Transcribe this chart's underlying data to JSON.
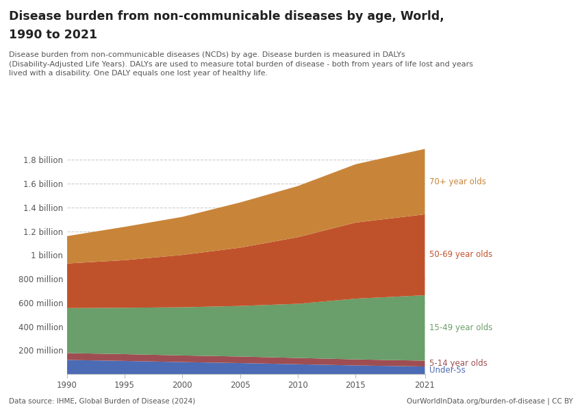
{
  "title_line1": "Disease burden from non-communicable diseases by age, World,",
  "title_line2": "1990 to 2021",
  "subtitle": "Disease burden from non-communicable diseases (NCDs) by age. Disease burden is measured in DALYs\n(Disability-Adjusted Life Years). DALYs are used to measure total burden of disease - both from years of life lost and years\nlived with a disability. One DALY equals one lost year of healthy life.",
  "source": "Data source: IHME, Global Burden of Disease (2024)",
  "source_right": "OurWorldInData.org/burden-of-disease | CC BY",
  "years": [
    1990,
    1995,
    2000,
    2005,
    2010,
    2015,
    2021
  ],
  "series": {
    "Under-5s": {
      "color": "#4c6bb5",
      "label_color": "#4c6bb5",
      "values": [
        118000000,
        110000000,
        100000000,
        92000000,
        82000000,
        72000000,
        63000000
      ]
    },
    "5-14 year olds": {
      "color": "#9e4e52",
      "label_color": "#9e4e52",
      "values": [
        58000000,
        57000000,
        56000000,
        55000000,
        53000000,
        51000000,
        49000000
      ]
    },
    "15-49 year olds": {
      "color": "#6a9e6a",
      "label_color": "#6a9e6a",
      "values": [
        378000000,
        390000000,
        405000000,
        425000000,
        455000000,
        510000000,
        550000000
      ]
    },
    "50-69 year olds": {
      "color": "#c0522b",
      "label_color": "#c0522b",
      "values": [
        375000000,
        400000000,
        440000000,
        490000000,
        560000000,
        640000000,
        680000000
      ]
    },
    "70+ year olds": {
      "color": "#c8853a",
      "label_color": "#c8853a",
      "values": [
        230000000,
        280000000,
        320000000,
        380000000,
        430000000,
        490000000,
        550000000
      ]
    }
  },
  "ylim": [
    0,
    1900000000
  ],
  "yticks": [
    200000000,
    400000000,
    600000000,
    800000000,
    1000000000,
    1200000000,
    1400000000,
    1600000000,
    1800000000
  ],
  "ytick_labels": [
    "200 million",
    "400 million",
    "600 million",
    "800 million",
    "1 billion",
    "1.2 billion",
    "1.4 billion",
    "1.6 billion",
    "1.8 billion"
  ],
  "background_color": "#ffffff",
  "grid_color": "#cccccc",
  "owid_box_bg": "#c0392b",
  "owid_box_text": "#ffffff"
}
